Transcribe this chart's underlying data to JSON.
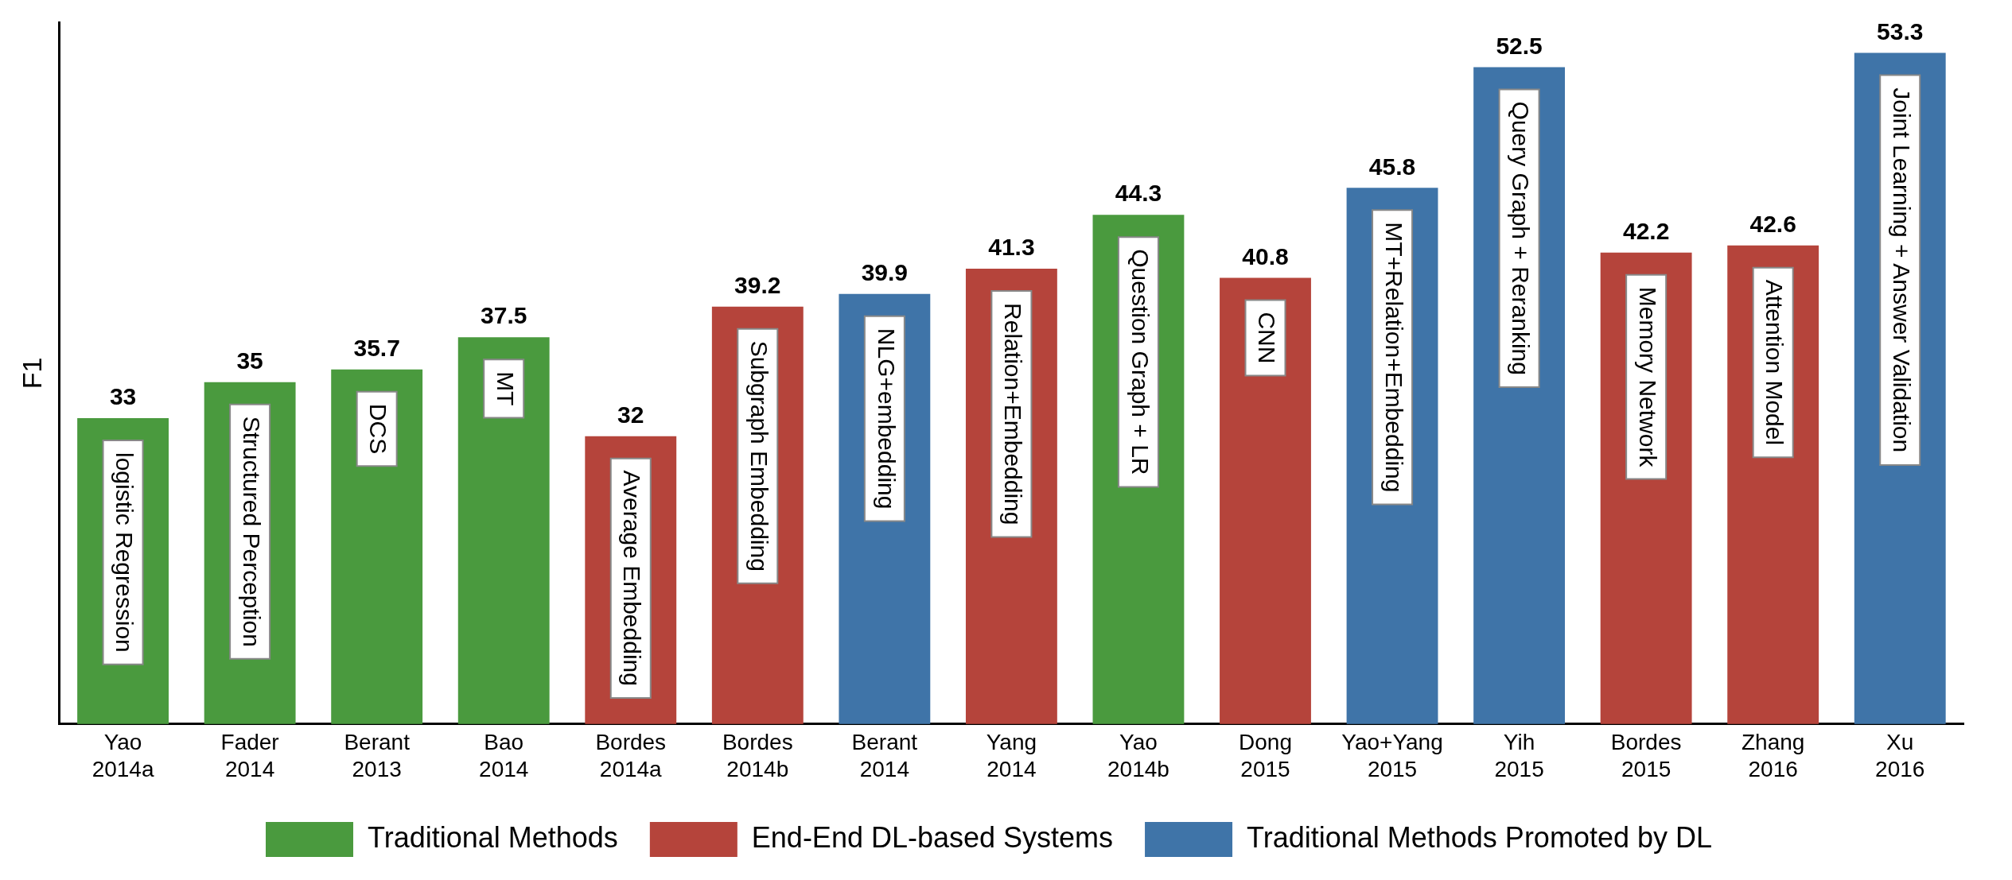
{
  "chart_data": {
    "type": "bar",
    "ylabel": "F1",
    "categories": [
      "Yao 2014a",
      "Fader 2014",
      "Berant 2013",
      "Bao 2014",
      "Bordes 2014a",
      "Bordes 2014b",
      "Berant 2014",
      "Yang 2014",
      "Yao 2014b",
      "Dong 2015",
      "Yao+Yang 2015",
      "Yih 2015",
      "Bordes 2015",
      "Zhang 2016",
      "Xu 2016"
    ],
    "series": [
      {
        "name": "Traditional Methods",
        "color": "#4a9a3e",
        "values": [
          33,
          35,
          35.7,
          37.5,
          null,
          null,
          null,
          null,
          44.3,
          null,
          null,
          null,
          null,
          null,
          null
        ]
      },
      {
        "name": "End-End DL-based Systems",
        "color": "#b5443b",
        "values": [
          null,
          null,
          null,
          null,
          32,
          39.2,
          null,
          41.3,
          null,
          40.8,
          null,
          null,
          42.2,
          42.6,
          null
        ]
      },
      {
        "name": "Traditional Methods Promoted by DL",
        "color": "#3f74a8",
        "values": [
          null,
          null,
          null,
          null,
          null,
          null,
          39.9,
          null,
          null,
          null,
          45.8,
          52.5,
          null,
          null,
          53.3
        ]
      }
    ],
    "ylim": [
      16,
      55
    ],
    "data_labels": true,
    "legend": "bottom",
    "grid": false,
    "annotations": [
      "logistic Regression",
      "Structured Perception",
      "DCS",
      "MT",
      "Average Embedding",
      "Subgraph Embedding",
      "NLG+embedding",
      "Relation+Embedding",
      "Question Graph + LR",
      "CNN",
      "MT+Relation+Embedding",
      "Query Graph + Reranking",
      "Memory Network",
      "Attention Model",
      "Joint Learning + Answer Validation"
    ]
  }
}
